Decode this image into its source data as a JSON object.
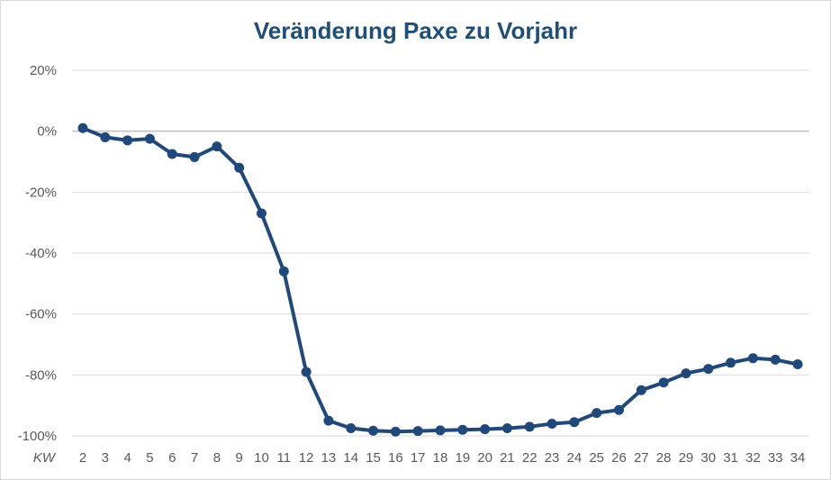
{
  "chart_data": {
    "type": "line",
    "title": "Veränderung Paxe zu Vorjahr",
    "xlabel": "KW",
    "ylabel": "",
    "ylim": [
      -100,
      20
    ],
    "yticks": [
      20,
      0,
      -20,
      -40,
      -60,
      -80,
      -100
    ],
    "ytick_labels": [
      "20%",
      "0%",
      "-20%",
      "-40%",
      "-60%",
      "-80%",
      "-100%"
    ],
    "grid": true,
    "legend": "none",
    "x": [
      2,
      3,
      4,
      5,
      6,
      7,
      8,
      9,
      10,
      11,
      12,
      13,
      14,
      15,
      16,
      17,
      18,
      19,
      20,
      21,
      22,
      23,
      24,
      25,
      26,
      27,
      28,
      29,
      30,
      31,
      32,
      33,
      34
    ],
    "x_labels": [
      "2",
      "3",
      "4",
      "5",
      "6",
      "7",
      "8",
      "9",
      "10",
      "11",
      "12",
      "13",
      "14",
      "15",
      "16",
      "17",
      "18",
      "19",
      "20",
      "21",
      "22",
      "23",
      "24",
      "25",
      "26",
      "27",
      "28",
      "29",
      "30",
      "31",
      "32",
      "33",
      "34"
    ],
    "series": [
      {
        "values": [
          1,
          -2,
          -3,
          -2.5,
          -7.5,
          -8.5,
          -5,
          -12,
          -27,
          -46,
          -79,
          -95,
          -97.5,
          -98.3,
          -98.6,
          -98.4,
          -98.2,
          -98,
          -97.8,
          -97.5,
          -97,
          -96,
          -95.5,
          -92.5,
          -91.5,
          -85,
          -82.5,
          -79.5,
          -78,
          -76,
          -74.5,
          -75,
          -76.5
        ],
        "color": "#1f497d"
      }
    ],
    "colors": {
      "line": "#1f497d",
      "grid": "#d9d9d9",
      "title": "#1f4e79",
      "ticks": "#595959"
    }
  }
}
